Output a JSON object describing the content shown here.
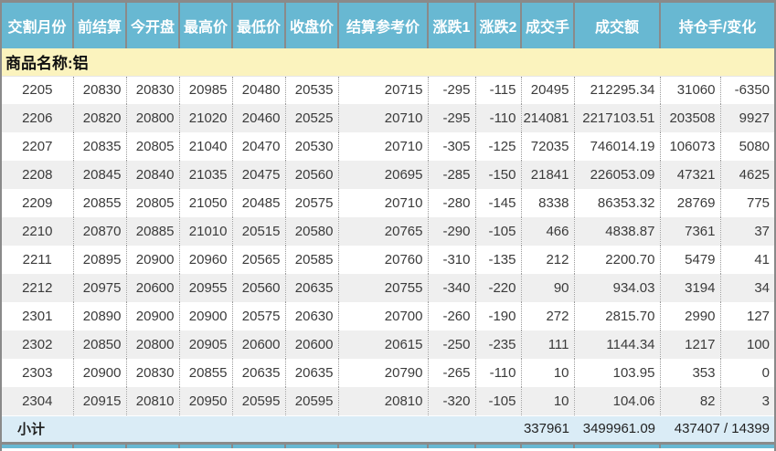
{
  "table": {
    "column_keys": [
      "month",
      "prev_settle",
      "open",
      "high",
      "low",
      "close",
      "settle_ref",
      "change1",
      "change2",
      "volume",
      "turnover",
      "open_interest",
      "oi_change"
    ],
    "columns": [
      {
        "label": "交割月份"
      },
      {
        "label": "前结算"
      },
      {
        "label": "今开盘"
      },
      {
        "label": "最高价"
      },
      {
        "label": "最低价"
      },
      {
        "label": "收盘价"
      },
      {
        "label": "结算参考价"
      },
      {
        "label": "涨跌1"
      },
      {
        "label": "涨跌2"
      },
      {
        "label": "成交手"
      },
      {
        "label": "成交额"
      },
      {
        "label": "持仓手/变化"
      }
    ],
    "group_label": "商品名称:铝",
    "rows": [
      [
        "2205",
        "20830",
        "20830",
        "20985",
        "20480",
        "20535",
        "20715",
        "-295",
        "-115",
        "20495",
        "212295.34",
        "31060",
        "-6350"
      ],
      [
        "2206",
        "20820",
        "20800",
        "21020",
        "20460",
        "20525",
        "20710",
        "-295",
        "-110",
        "214081",
        "2217103.51",
        "203508",
        "9927"
      ],
      [
        "2207",
        "20835",
        "20805",
        "21040",
        "20470",
        "20530",
        "20710",
        "-305",
        "-125",
        "72035",
        "746014.19",
        "106073",
        "5080"
      ],
      [
        "2208",
        "20845",
        "20840",
        "21035",
        "20475",
        "20560",
        "20695",
        "-285",
        "-150",
        "21841",
        "226053.09",
        "47321",
        "4625"
      ],
      [
        "2209",
        "20855",
        "20805",
        "21050",
        "20485",
        "20575",
        "20710",
        "-280",
        "-145",
        "8338",
        "86353.32",
        "28769",
        "775"
      ],
      [
        "2210",
        "20870",
        "20885",
        "21010",
        "20515",
        "20580",
        "20765",
        "-290",
        "-105",
        "466",
        "4838.87",
        "7361",
        "37"
      ],
      [
        "2211",
        "20895",
        "20900",
        "20960",
        "20565",
        "20585",
        "20760",
        "-310",
        "-135",
        "212",
        "2200.70",
        "5479",
        "41"
      ],
      [
        "2212",
        "20975",
        "20600",
        "20955",
        "20560",
        "20635",
        "20755",
        "-340",
        "-220",
        "90",
        "934.03",
        "3194",
        "34"
      ],
      [
        "2301",
        "20890",
        "20900",
        "20900",
        "20575",
        "20630",
        "20700",
        "-260",
        "-190",
        "272",
        "2815.70",
        "2990",
        "127"
      ],
      [
        "2302",
        "20850",
        "20800",
        "20905",
        "20600",
        "20600",
        "20615",
        "-250",
        "-235",
        "111",
        "1144.34",
        "1217",
        "100"
      ],
      [
        "2303",
        "20900",
        "20830",
        "20855",
        "20635",
        "20635",
        "20790",
        "-265",
        "-110",
        "10",
        "103.95",
        "353",
        "0"
      ],
      [
        "2304",
        "20915",
        "20810",
        "20950",
        "20595",
        "20595",
        "20810",
        "-320",
        "-105",
        "10",
        "104.06",
        "82",
        "3"
      ]
    ],
    "subtotal": {
      "label": "小计",
      "volume": "337961",
      "turnover": "3499961.09",
      "oi_change": "437407 / 14399"
    }
  },
  "colors": {
    "header_bg": "#68b8d2",
    "header_text": "#ffffff",
    "group_bg": "#fbf3be",
    "alt_row_bg": "#efefef",
    "subtotal_bg": "#daecf6",
    "border_gray": "#8a8a8a",
    "text": "#3b3b3b"
  }
}
